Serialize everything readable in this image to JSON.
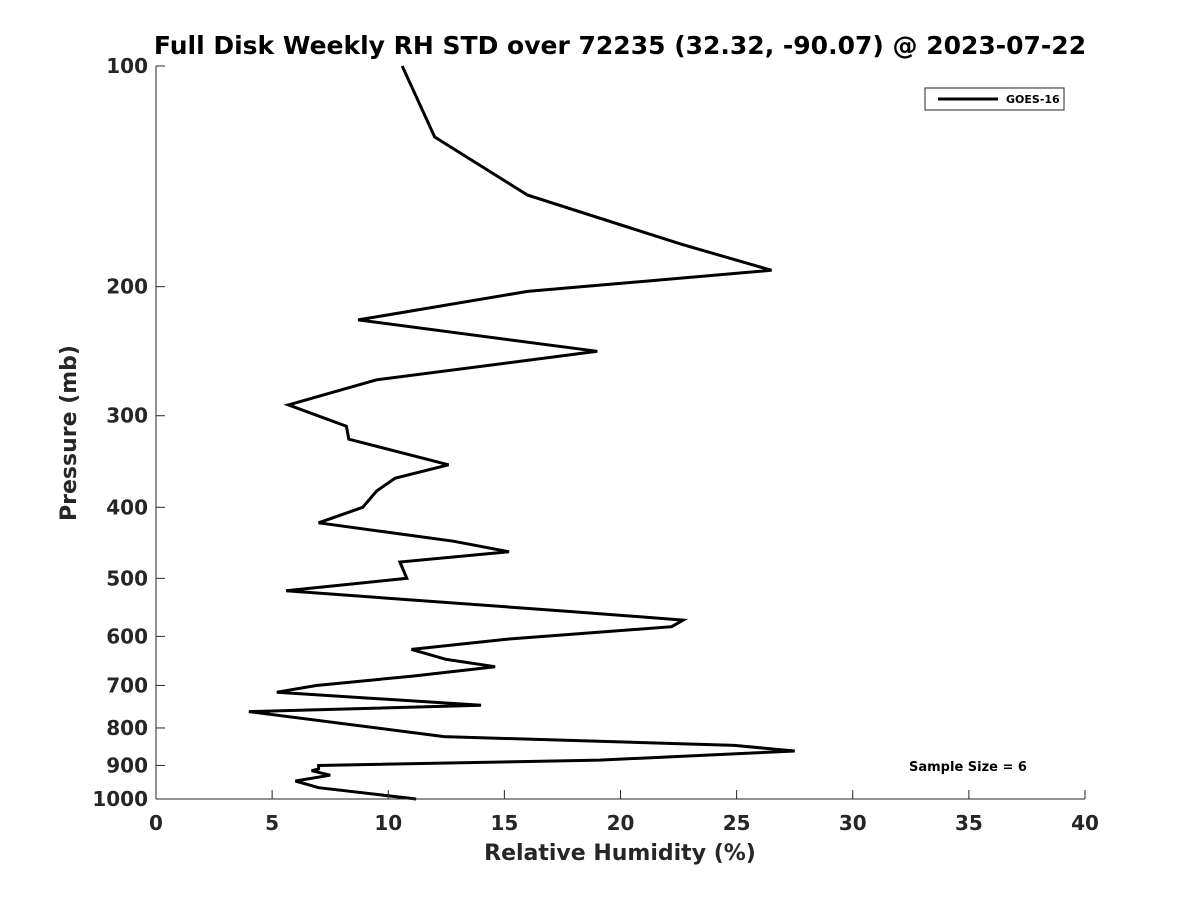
{
  "chart_data": {
    "type": "line",
    "title": "Full Disk Weekly RH STD over 72235 (32.32, -90.07) @ 2023-07-22",
    "xlabel": "Relative Humidity (%)",
    "ylabel": "Pressure (mb)",
    "xlim": [
      0,
      40
    ],
    "ylim": [
      100,
      1000
    ],
    "yscale": "log",
    "y_reversed": true,
    "xticks": [
      0,
      5,
      10,
      15,
      20,
      25,
      30,
      35,
      40
    ],
    "yticks": [
      100,
      200,
      300,
      400,
      500,
      600,
      700,
      800,
      900,
      1000
    ],
    "grid": false,
    "legend_position": "top-right",
    "series": [
      {
        "name": "GOES-16",
        "color": "#000000",
        "points": [
          [
            10.6,
            100
          ],
          [
            12.0,
            125
          ],
          [
            16.0,
            150
          ],
          [
            22.6,
            175
          ],
          [
            26.5,
            190
          ],
          [
            16.0,
            203
          ],
          [
            8.7,
            222
          ],
          [
            19.0,
            245
          ],
          [
            9.5,
            268
          ],
          [
            5.7,
            290
          ],
          [
            8.2,
            310
          ],
          [
            8.3,
            323
          ],
          [
            12.6,
            350
          ],
          [
            10.3,
            365
          ],
          [
            9.5,
            380
          ],
          [
            8.9,
            400
          ],
          [
            7.0,
            420
          ],
          [
            12.8,
            445
          ],
          [
            15.2,
            460
          ],
          [
            10.5,
            475
          ],
          [
            10.8,
            500
          ],
          [
            5.6,
            520
          ],
          [
            17.9,
            555
          ],
          [
            22.7,
            570
          ],
          [
            22.2,
            582
          ],
          [
            15.2,
            605
          ],
          [
            11.0,
            625
          ],
          [
            12.5,
            645
          ],
          [
            14.6,
            660
          ],
          [
            11.0,
            680
          ],
          [
            6.9,
            700
          ],
          [
            5.2,
            715
          ],
          [
            14.0,
            745
          ],
          [
            4.0,
            760
          ],
          [
            12.4,
            822
          ],
          [
            24.9,
            845
          ],
          [
            27.5,
            860
          ],
          [
            19.1,
            885
          ],
          [
            7.0,
            900
          ],
          [
            7.0,
            910
          ],
          [
            6.7,
            915
          ],
          [
            7.5,
            928
          ],
          [
            6.0,
            945
          ],
          [
            7.0,
            965
          ],
          [
            11.2,
            1000
          ]
        ]
      }
    ],
    "annotations": [
      "Sample Size = 6"
    ]
  }
}
